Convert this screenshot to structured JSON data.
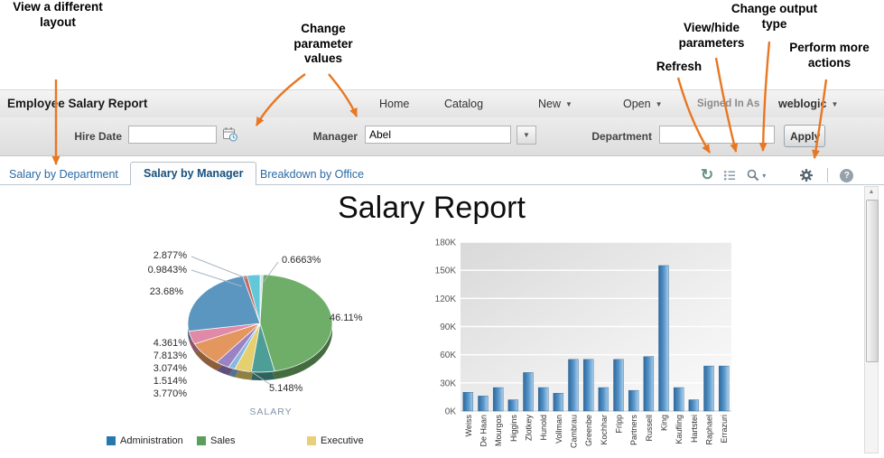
{
  "annotations": {
    "view_layout": "View a different\nlayout",
    "change_params": "Change\nparameter\nvalues",
    "refresh": "Refresh",
    "view_hide": "View/hide\nparameters",
    "output_type": "Change output\ntype",
    "more_actions": "Perform more\nactions"
  },
  "header": {
    "title": "Employee Salary Report",
    "menu": {
      "home": "Home",
      "catalog": "Catalog",
      "new": "New",
      "open": "Open"
    },
    "signed_in_label": "Signed In As",
    "user": "weblogic"
  },
  "parameters": {
    "hire_date_label": "Hire Date",
    "hire_date_value": "",
    "manager_label": "Manager",
    "manager_value": "Abel",
    "department_label": "Department",
    "department_value": "",
    "apply_label": "Apply"
  },
  "tabs": [
    {
      "label": "Salary by Department",
      "active": false
    },
    {
      "label": "Salary by Manager",
      "active": true
    },
    {
      "label": "Breakdown by Office",
      "active": false
    }
  ],
  "toolbar": {
    "icons": [
      "refresh-icon",
      "parameters-icon",
      "output-type-icon",
      "actions-gear-icon",
      "help-icon"
    ]
  },
  "report": {
    "title": "Salary Report"
  },
  "ui": {
    "caret_down": "▼",
    "caret_small": "▾",
    "refresh_glyph": "↻",
    "help_glyph": "?",
    "scroll_up_glyph": "▲"
  },
  "chart_data": [
    {
      "type": "pie",
      "title": "SALARY",
      "slices": [
        {
          "label": "0.6663%",
          "value": 0.6663,
          "color": "#cfe3ee"
        },
        {
          "label": "46.11%",
          "value": 46.11,
          "color": "#6fae68"
        },
        {
          "label": "5.148%",
          "value": 5.148,
          "color": "#4d9e96"
        },
        {
          "label": "3.770%",
          "value": 3.77,
          "color": "#e6cf6e"
        },
        {
          "label": "1.514%",
          "value": 1.514,
          "color": "#8ab8dd"
        },
        {
          "label": "3.074%",
          "value": 3.074,
          "color": "#9b82c4"
        },
        {
          "label": "7.813%",
          "value": 7.813,
          "color": "#e3975e"
        },
        {
          "label": "4.361%",
          "value": 4.361,
          "color": "#e08aa8"
        },
        {
          "label": "23.68%",
          "value": 23.68,
          "color": "#5a96bf"
        },
        {
          "label": "0.9843%",
          "value": 0.9843,
          "color": "#c46a62"
        },
        {
          "label": "2.877%",
          "value": 2.877,
          "color": "#62c8d8"
        }
      ],
      "legend": [
        {
          "label": "Administration",
          "color": "#2878b0"
        },
        {
          "label": "Sales",
          "color": "#5ba05a"
        },
        {
          "label": "Executive",
          "color": "#e8d078"
        }
      ]
    },
    {
      "type": "bar",
      "categories": [
        "Weiss",
        "De Haan",
        "Mourgos",
        "Higgins",
        "Zlotkey",
        "Hunold",
        "Vollman",
        "Cambrau",
        "Greenbe",
        "Kochhar",
        "Fripp",
        "Partners",
        "Russell",
        "King",
        "Kaufling",
        "Hartstei",
        "Raphael",
        "Errazuri"
      ],
      "values": [
        20,
        16,
        25,
        12,
        41,
        25,
        19,
        55,
        55,
        25,
        55,
        22,
        58,
        155,
        25,
        12,
        48,
        48
      ],
      "yticks": [
        "0K",
        "30K",
        "60K",
        "90K",
        "120K",
        "150K",
        "180K"
      ],
      "ylim": [
        0,
        180
      ],
      "bar_color": "#4a86c0",
      "xlabel": "",
      "ylabel": ""
    }
  ]
}
